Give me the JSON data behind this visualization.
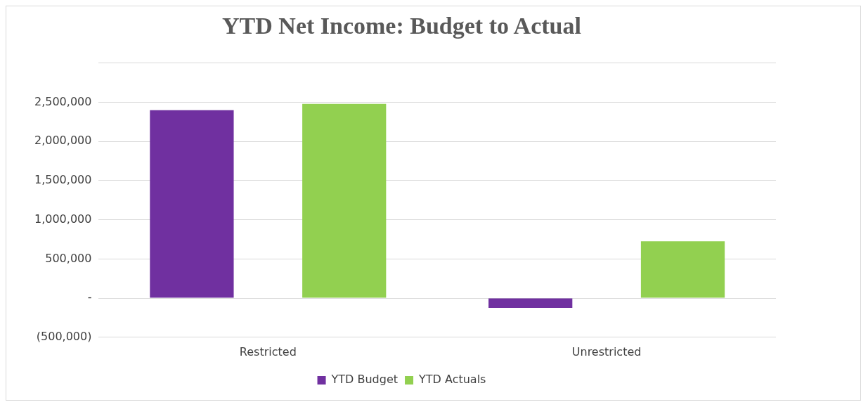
{
  "chart_data": {
    "type": "bar",
    "title": "YTD Net Income: Budget to Actual",
    "categories": [
      "Restricted",
      "Unrestricted"
    ],
    "series": [
      {
        "name": "YTD Budget",
        "color": "#7030a0",
        "values": [
          2400000,
          -125000
        ]
      },
      {
        "name": "YTD Actuals",
        "color": "#92d050",
        "values": [
          2480000,
          725000
        ]
      }
    ],
    "ylim": [
      -500000,
      3000000
    ],
    "yticks": [
      {
        "value": -500000,
        "label": "(500,000)"
      },
      {
        "value": 0,
        "label": "-"
      },
      {
        "value": 500000,
        "label": "500,000"
      },
      {
        "value": 1000000,
        "label": "1,000,000"
      },
      {
        "value": 1500000,
        "label": "1,500,000"
      },
      {
        "value": 2000000,
        "label": "2,000,000"
      },
      {
        "value": 2500000,
        "label": "2,500,000"
      },
      {
        "value": 3000000,
        "label": null
      }
    ],
    "grid": "y",
    "legend": "bottom"
  }
}
